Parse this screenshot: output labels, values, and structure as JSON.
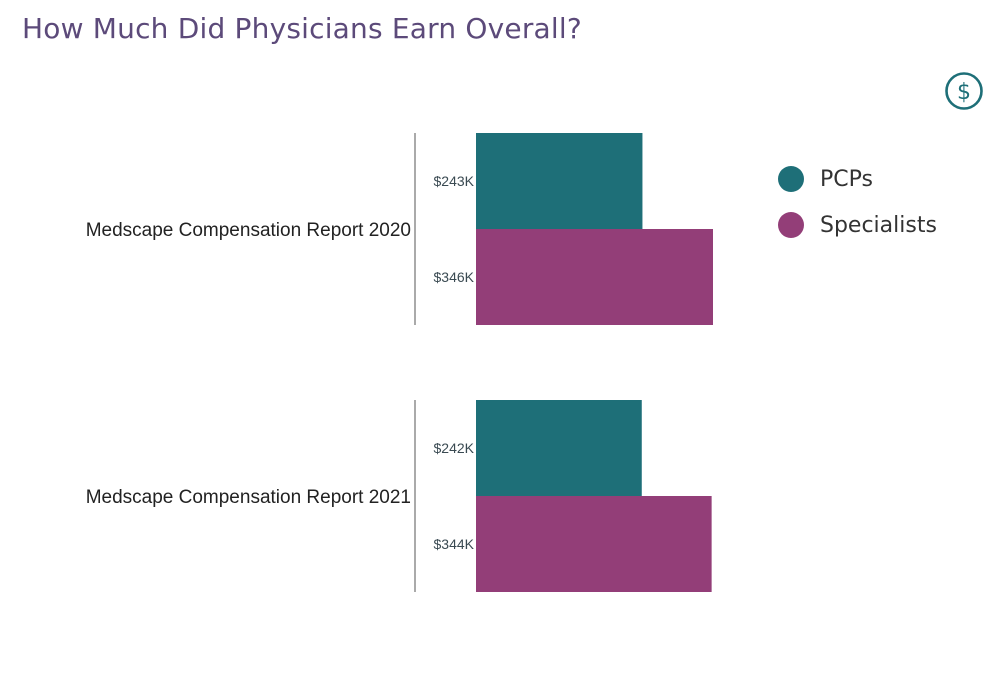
{
  "title": "How Much Did Physicians Earn Overall?",
  "icon": "dollar-circle-icon",
  "colors": {
    "title": "#5c4a7a",
    "pcps": "#1e6f78",
    "specialists": "#933e78",
    "icon": "#1e6f78"
  },
  "chart_data": {
    "type": "bar",
    "orientation": "horizontal",
    "categories": [
      "Medscape Compensation Report 2020",
      "Medscape Compensation Report 2021"
    ],
    "series": [
      {
        "name": "PCPs",
        "values": [
          243,
          242
        ],
        "labels": [
          "$243K",
          "$242K"
        ],
        "color": "#1e6f78"
      },
      {
        "name": "Specialists",
        "values": [
          346,
          344
        ],
        "labels": [
          "$346K",
          "$344K"
        ],
        "color": "#933e78"
      }
    ],
    "title": "How Much Did Physicians Earn Overall?",
    "xlabel": "",
    "ylabel": "",
    "xlim": [
      0,
      346
    ],
    "grid": false,
    "legend_position": "right"
  }
}
